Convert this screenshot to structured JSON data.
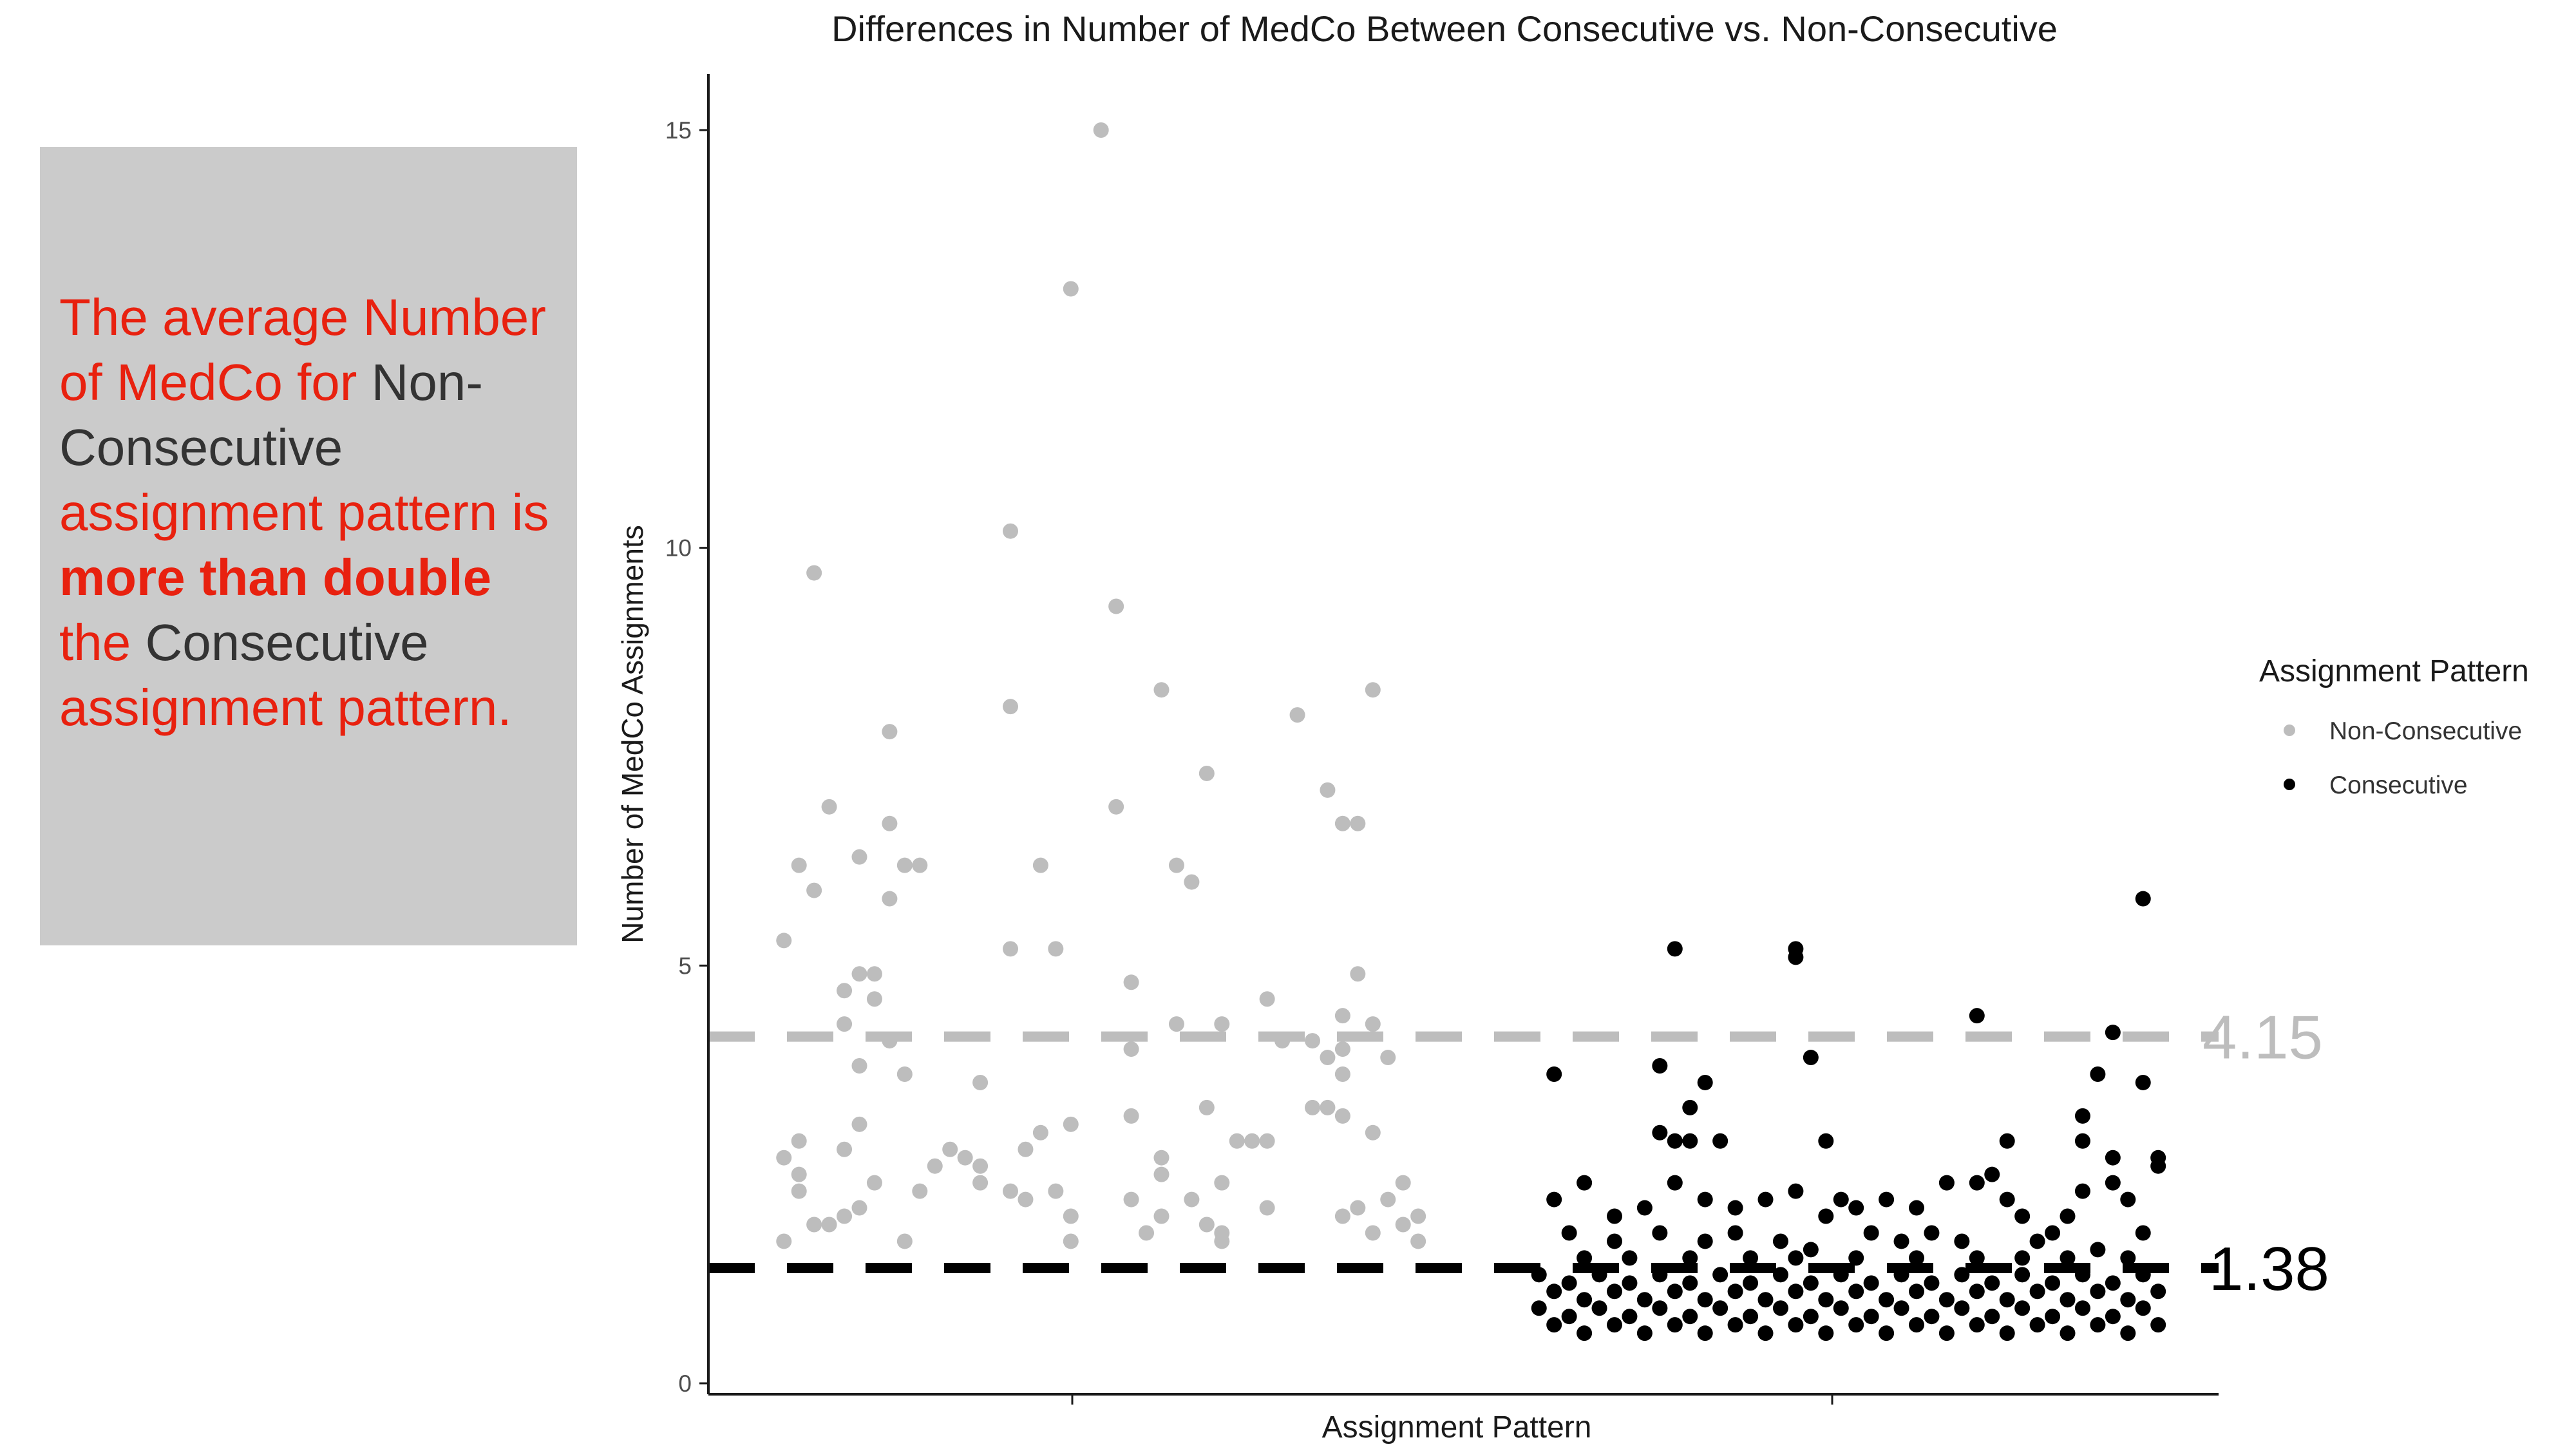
{
  "callout": {
    "t1": "The average Number of MedCo for ",
    "t2": "Non-Consecutive",
    "t3": " assignment pattern is ",
    "t4": "more than double",
    "t5": " the ",
    "t6": "Consecutive",
    "t7": " assignment pattern."
  },
  "colors": {
    "non_consecutive": "#bdbdbd",
    "consecutive": "#000000",
    "callout_bg": "#cbcbcb",
    "callout_text": "#e8210f",
    "callout_dark": "#333333"
  },
  "chart_data": {
    "type": "scatter",
    "title": "Differences in Number of MedCo Between Consecutive vs. Non-Consecutive",
    "xlabel": "Assignment Pattern",
    "ylabel": "Number of MedCo Assignments",
    "ylim": [
      0,
      15
    ],
    "yticks": [
      "0",
      "5",
      "10",
      "15"
    ],
    "grid": false,
    "legend": {
      "title": "Assignment Pattern",
      "position": "right",
      "entries": [
        "Non-Consecutive",
        "Consecutive"
      ]
    },
    "reference_lines": [
      {
        "series": "Non-Consecutive",
        "value": 4.15,
        "label": "4.15",
        "style": "dashed"
      },
      {
        "series": "Consecutive",
        "value": 1.38,
        "label": "1.38",
        "style": "dashed"
      }
    ],
    "series": [
      {
        "name": "Non-Consecutive",
        "points": [
          [
            0.07,
            9.7
          ],
          [
            0.26,
            15.0
          ],
          [
            0.24,
            13.1
          ],
          [
            0.2,
            10.2
          ],
          [
            0.27,
            9.3
          ],
          [
            0.12,
            7.8
          ],
          [
            0.2,
            8.1
          ],
          [
            0.3,
            8.3
          ],
          [
            0.39,
            8.0
          ],
          [
            0.44,
            8.3
          ],
          [
            0.33,
            7.3
          ],
          [
            0.41,
            7.1
          ],
          [
            0.42,
            6.7
          ],
          [
            0.08,
            6.9
          ],
          [
            0.06,
            6.2
          ],
          [
            0.1,
            6.3
          ],
          [
            0.14,
            6.2
          ],
          [
            0.13,
            6.2
          ],
          [
            0.22,
            6.2
          ],
          [
            0.07,
            5.9
          ],
          [
            0.12,
            6.7
          ],
          [
            0.27,
            6.9
          ],
          [
            0.31,
            6.2
          ],
          [
            0.32,
            6.0
          ],
          [
            0.43,
            6.7
          ],
          [
            0.12,
            5.8
          ],
          [
            0.05,
            5.3
          ],
          [
            0.09,
            4.7
          ],
          [
            0.1,
            4.9
          ],
          [
            0.11,
            4.9
          ],
          [
            0.11,
            4.6
          ],
          [
            0.2,
            5.2
          ],
          [
            0.23,
            5.2
          ],
          [
            0.28,
            4.8
          ],
          [
            0.37,
            4.6
          ],
          [
            0.43,
            4.9
          ],
          [
            0.09,
            4.3
          ],
          [
            0.12,
            4.1
          ],
          [
            0.28,
            4.0
          ],
          [
            0.31,
            4.3
          ],
          [
            0.34,
            4.3
          ],
          [
            0.38,
            4.1
          ],
          [
            0.4,
            4.1
          ],
          [
            0.42,
            4.4
          ],
          [
            0.44,
            4.3
          ],
          [
            0.42,
            4.0
          ],
          [
            0.41,
            3.9
          ],
          [
            0.1,
            3.8
          ],
          [
            0.13,
            3.7
          ],
          [
            0.18,
            3.6
          ],
          [
            0.42,
            3.7
          ],
          [
            0.45,
            3.9
          ],
          [
            0.06,
            2.9
          ],
          [
            0.1,
            3.1
          ],
          [
            0.16,
            2.8
          ],
          [
            0.17,
            2.7
          ],
          [
            0.21,
            2.8
          ],
          [
            0.22,
            3.0
          ],
          [
            0.24,
            3.1
          ],
          [
            0.28,
            3.2
          ],
          [
            0.3,
            2.7
          ],
          [
            0.33,
            3.3
          ],
          [
            0.35,
            2.9
          ],
          [
            0.36,
            2.9
          ],
          [
            0.37,
            2.9
          ],
          [
            0.4,
            3.3
          ],
          [
            0.41,
            3.3
          ],
          [
            0.42,
            3.2
          ],
          [
            0.44,
            3.0
          ],
          [
            0.05,
            2.7
          ],
          [
            0.09,
            2.8
          ],
          [
            0.06,
            2.5
          ],
          [
            0.11,
            2.4
          ],
          [
            0.15,
            2.6
          ],
          [
            0.18,
            2.6
          ],
          [
            0.2,
            2.3
          ],
          [
            0.23,
            2.3
          ],
          [
            0.3,
            2.5
          ],
          [
            0.32,
            2.2
          ],
          [
            0.34,
            2.4
          ],
          [
            0.46,
            2.4
          ],
          [
            0.06,
            2.3
          ],
          [
            0.07,
            1.9
          ],
          [
            0.08,
            1.9
          ],
          [
            0.09,
            2.0
          ],
          [
            0.1,
            2.1
          ],
          [
            0.14,
            2.3
          ],
          [
            0.18,
            2.4
          ],
          [
            0.21,
            2.2
          ],
          [
            0.24,
            2.0
          ],
          [
            0.28,
            2.2
          ],
          [
            0.3,
            2.0
          ],
          [
            0.33,
            1.9
          ],
          [
            0.34,
            1.8
          ],
          [
            0.37,
            2.1
          ],
          [
            0.42,
            2.0
          ],
          [
            0.43,
            2.1
          ],
          [
            0.45,
            2.2
          ],
          [
            0.44,
            1.8
          ],
          [
            0.47,
            2.0
          ],
          [
            0.05,
            1.7
          ],
          [
            0.13,
            1.7
          ],
          [
            0.24,
            1.7
          ],
          [
            0.29,
            1.8
          ],
          [
            0.34,
            1.7
          ],
          [
            0.46,
            1.9
          ],
          [
            0.47,
            1.7
          ]
        ]
      },
      {
        "name": "Consecutive",
        "points": [
          [
            0.64,
            5.2
          ],
          [
            0.72,
            5.1
          ],
          [
            0.72,
            5.2
          ],
          [
            0.84,
            4.4
          ],
          [
            0.95,
            5.8
          ],
          [
            0.93,
            4.2
          ],
          [
            0.56,
            3.7
          ],
          [
            0.63,
            3.8
          ],
          [
            0.66,
            3.6
          ],
          [
            0.65,
            3.3
          ],
          [
            0.73,
            3.9
          ],
          [
            0.92,
            3.7
          ],
          [
            0.91,
            3.2
          ],
          [
            0.95,
            3.6
          ],
          [
            0.63,
            3.0
          ],
          [
            0.64,
            2.9
          ],
          [
            0.65,
            2.9
          ],
          [
            0.67,
            2.9
          ],
          [
            0.74,
            2.9
          ],
          [
            0.86,
            2.9
          ],
          [
            0.91,
            2.9
          ],
          [
            0.96,
            2.6
          ],
          [
            0.93,
            2.7
          ],
          [
            0.78,
            2.2
          ],
          [
            0.82,
            2.4
          ],
          [
            0.84,
            2.4
          ],
          [
            0.86,
            2.2
          ],
          [
            0.85,
            2.5
          ],
          [
            0.9,
            2.0
          ],
          [
            0.91,
            2.3
          ],
          [
            0.93,
            2.4
          ],
          [
            0.94,
            2.2
          ],
          [
            0.96,
            2.7
          ],
          [
            0.56,
            2.2
          ],
          [
            0.58,
            2.4
          ],
          [
            0.6,
            2.0
          ],
          [
            0.62,
            2.1
          ],
          [
            0.64,
            2.4
          ],
          [
            0.66,
            2.2
          ],
          [
            0.68,
            2.1
          ],
          [
            0.7,
            2.2
          ],
          [
            0.72,
            2.3
          ],
          [
            0.74,
            2.0
          ],
          [
            0.75,
            2.2
          ],
          [
            0.76,
            2.1
          ],
          [
            0.8,
            2.1
          ],
          [
            0.87,
            2.0
          ],
          [
            0.89,
            1.8
          ],
          [
            0.57,
            1.8
          ],
          [
            0.6,
            1.7
          ],
          [
            0.63,
            1.8
          ],
          [
            0.66,
            1.7
          ],
          [
            0.68,
            1.8
          ],
          [
            0.71,
            1.7
          ],
          [
            0.73,
            1.6
          ],
          [
            0.77,
            1.8
          ],
          [
            0.79,
            1.7
          ],
          [
            0.81,
            1.8
          ],
          [
            0.83,
            1.7
          ],
          [
            0.88,
            1.7
          ],
          [
            0.92,
            1.6
          ],
          [
            0.95,
            1.8
          ],
          [
            0.58,
            1.5
          ],
          [
            0.61,
            1.5
          ],
          [
            0.65,
            1.5
          ],
          [
            0.69,
            1.5
          ],
          [
            0.72,
            1.5
          ],
          [
            0.76,
            1.5
          ],
          [
            0.8,
            1.5
          ],
          [
            0.84,
            1.5
          ],
          [
            0.87,
            1.5
          ],
          [
            0.9,
            1.5
          ],
          [
            0.94,
            1.5
          ],
          [
            0.55,
            1.3
          ],
          [
            0.57,
            1.2
          ],
          [
            0.59,
            1.3
          ],
          [
            0.61,
            1.2
          ],
          [
            0.63,
            1.3
          ],
          [
            0.65,
            1.2
          ],
          [
            0.67,
            1.3
          ],
          [
            0.69,
            1.2
          ],
          [
            0.71,
            1.3
          ],
          [
            0.73,
            1.2
          ],
          [
            0.75,
            1.3
          ],
          [
            0.77,
            1.2
          ],
          [
            0.79,
            1.3
          ],
          [
            0.81,
            1.2
          ],
          [
            0.83,
            1.3
          ],
          [
            0.85,
            1.2
          ],
          [
            0.87,
            1.3
          ],
          [
            0.89,
            1.2
          ],
          [
            0.91,
            1.3
          ],
          [
            0.93,
            1.2
          ],
          [
            0.95,
            1.3
          ],
          [
            0.56,
            1.1
          ],
          [
            0.58,
            1.0
          ],
          [
            0.6,
            1.1
          ],
          [
            0.62,
            1.0
          ],
          [
            0.64,
            1.1
          ],
          [
            0.66,
            1.0
          ],
          [
            0.68,
            1.1
          ],
          [
            0.7,
            1.0
          ],
          [
            0.72,
            1.1
          ],
          [
            0.74,
            1.0
          ],
          [
            0.76,
            1.1
          ],
          [
            0.78,
            1.0
          ],
          [
            0.8,
            1.1
          ],
          [
            0.82,
            1.0
          ],
          [
            0.84,
            1.1
          ],
          [
            0.86,
            1.0
          ],
          [
            0.88,
            1.1
          ],
          [
            0.9,
            1.0
          ],
          [
            0.92,
            1.1
          ],
          [
            0.94,
            1.0
          ],
          [
            0.96,
            1.1
          ],
          [
            0.55,
            0.9
          ],
          [
            0.57,
            0.8
          ],
          [
            0.59,
            0.9
          ],
          [
            0.61,
            0.8
          ],
          [
            0.63,
            0.9
          ],
          [
            0.65,
            0.8
          ],
          [
            0.67,
            0.9
          ],
          [
            0.69,
            0.8
          ],
          [
            0.71,
            0.9
          ],
          [
            0.73,
            0.8
          ],
          [
            0.75,
            0.9
          ],
          [
            0.77,
            0.8
          ],
          [
            0.79,
            0.9
          ],
          [
            0.81,
            0.8
          ],
          [
            0.83,
            0.9
          ],
          [
            0.85,
            0.8
          ],
          [
            0.87,
            0.9
          ],
          [
            0.89,
            0.8
          ],
          [
            0.91,
            0.9
          ],
          [
            0.93,
            0.8
          ],
          [
            0.95,
            0.9
          ],
          [
            0.56,
            0.7
          ],
          [
            0.58,
            0.6
          ],
          [
            0.6,
            0.7
          ],
          [
            0.62,
            0.6
          ],
          [
            0.64,
            0.7
          ],
          [
            0.66,
            0.6
          ],
          [
            0.68,
            0.7
          ],
          [
            0.7,
            0.6
          ],
          [
            0.72,
            0.7
          ],
          [
            0.74,
            0.6
          ],
          [
            0.76,
            0.7
          ],
          [
            0.78,
            0.6
          ],
          [
            0.8,
            0.7
          ],
          [
            0.82,
            0.6
          ],
          [
            0.84,
            0.7
          ],
          [
            0.86,
            0.6
          ],
          [
            0.88,
            0.7
          ],
          [
            0.9,
            0.6
          ],
          [
            0.92,
            0.7
          ],
          [
            0.94,
            0.6
          ],
          [
            0.96,
            0.7
          ]
        ]
      }
    ]
  }
}
